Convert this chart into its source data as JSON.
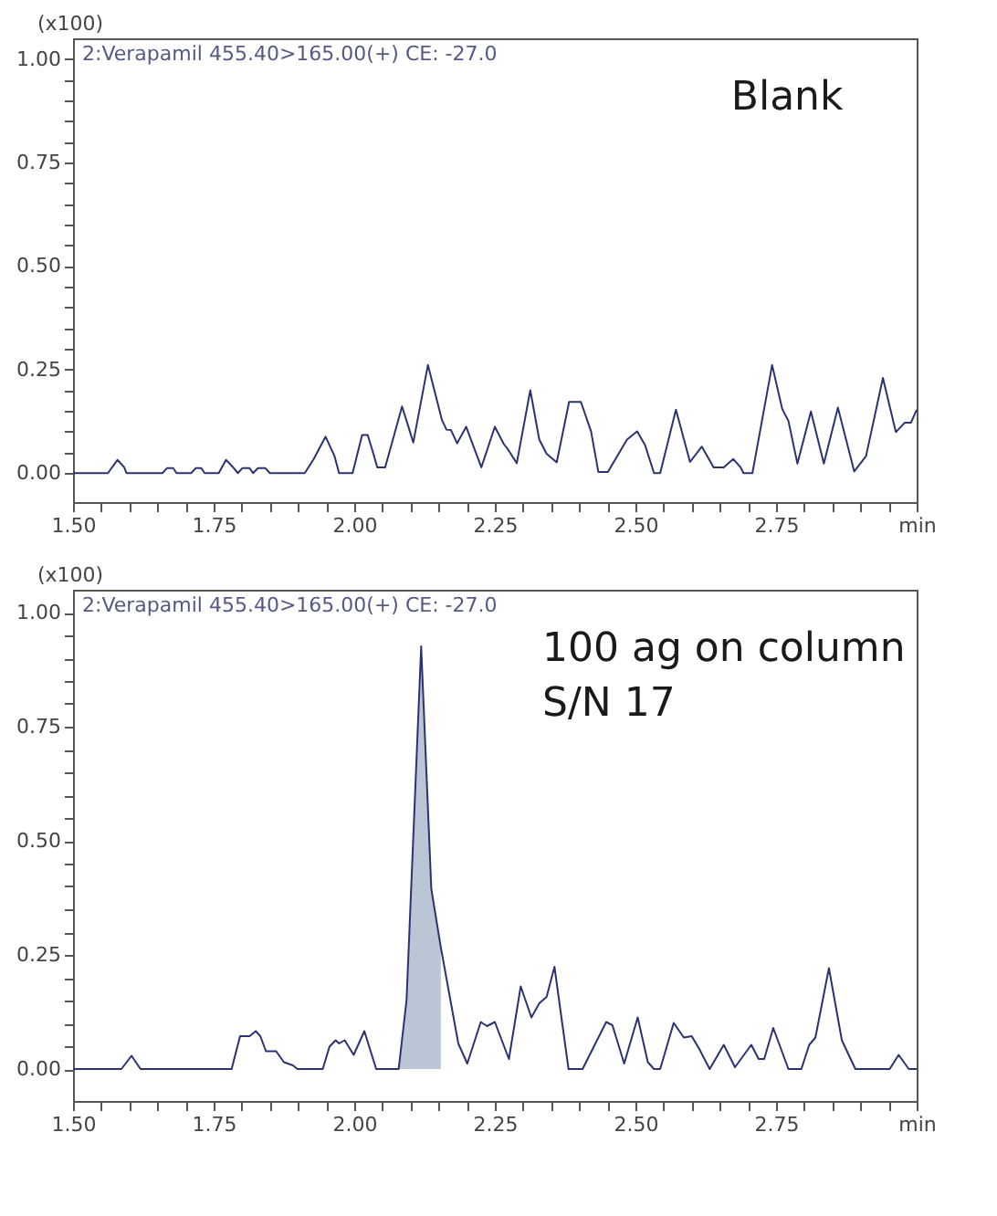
{
  "chart_data": [
    {
      "type": "line",
      "ylabel": "(x100)",
      "annotations": [
        "2:Verapamil 455.40>165.00(+) CE: -27.0",
        "Blank"
      ],
      "grid": false,
      "marker": "none",
      "line_style": "solid",
      "xlim": [
        1.5,
        3.0
      ],
      "ylim": [
        -0.07,
        1.05
      ],
      "xticks": [
        {
          "value": 1.5,
          "label": "1.50"
        },
        {
          "value": 1.55,
          "label": null
        },
        {
          "value": 1.6,
          "label": null
        },
        {
          "value": 1.65,
          "label": null
        },
        {
          "value": 1.7,
          "label": null
        },
        {
          "value": 1.75,
          "label": "1.75"
        },
        {
          "value": 1.8,
          "label": null
        },
        {
          "value": 1.85,
          "label": null
        },
        {
          "value": 1.9,
          "label": null
        },
        {
          "value": 1.95,
          "label": null
        },
        {
          "value": 2.0,
          "label": "2.00"
        },
        {
          "value": 2.05,
          "label": null
        },
        {
          "value": 2.1,
          "label": null
        },
        {
          "value": 2.15,
          "label": null
        },
        {
          "value": 2.2,
          "label": null
        },
        {
          "value": 2.25,
          "label": "2.25"
        },
        {
          "value": 2.3,
          "label": null
        },
        {
          "value": 2.35,
          "label": null
        },
        {
          "value": 2.4,
          "label": null
        },
        {
          "value": 2.45,
          "label": null
        },
        {
          "value": 2.5,
          "label": "2.50"
        },
        {
          "value": 2.55,
          "label": null
        },
        {
          "value": 2.6,
          "label": null
        },
        {
          "value": 2.65,
          "label": null
        },
        {
          "value": 2.7,
          "label": null
        },
        {
          "value": 2.75,
          "label": "2.75"
        },
        {
          "value": 2.8,
          "label": null
        },
        {
          "value": 2.85,
          "label": null
        },
        {
          "value": 2.9,
          "label": null
        },
        {
          "value": 2.95,
          "label": null
        },
        {
          "value": 3.0,
          "label": "min"
        }
      ],
      "yticks": [
        {
          "value": 0,
          "label": "0.00"
        },
        {
          "value": 0.05,
          "label": null
        },
        {
          "value": 0.1,
          "label": null
        },
        {
          "value": 0.15,
          "label": null
        },
        {
          "value": 0.2,
          "label": null
        },
        {
          "value": 0.25,
          "label": "0.25"
        },
        {
          "value": 0.3,
          "label": null
        },
        {
          "value": 0.35,
          "label": null
        },
        {
          "value": 0.4,
          "label": null
        },
        {
          "value": 0.45,
          "label": null
        },
        {
          "value": 0.5,
          "label": "0.50"
        },
        {
          "value": 0.55,
          "label": null
        },
        {
          "value": 0.6,
          "label": null
        },
        {
          "value": 0.65,
          "label": null
        },
        {
          "value": 0.7,
          "label": null
        },
        {
          "value": 0.75,
          "label": "0.75"
        },
        {
          "value": 0.8,
          "label": null
        },
        {
          "value": 0.85,
          "label": null
        },
        {
          "value": 0.9,
          "label": null
        },
        {
          "value": 0.95,
          "label": null
        },
        {
          "value": 1.0,
          "label": "1.00"
        }
      ],
      "series": [
        {
          "type": "line",
          "color": "#2b3470",
          "x": [
            1.5,
            1.562,
            1.579,
            1.591,
            1.595,
            1.659,
            1.667,
            1.678,
            1.684,
            1.71,
            1.718,
            1.728,
            1.734,
            1.759,
            1.772,
            1.784,
            1.793,
            1.801,
            1.814,
            1.82,
            1.829,
            1.842,
            1.85,
            1.912,
            1.928,
            1.949,
            1.965,
            1.973,
            1.997,
            2.014,
            2.024,
            2.034,
            2.041,
            2.055,
            2.085,
            2.094,
            2.105,
            2.131,
            2.156,
            2.164,
            2.172,
            2.183,
            2.199,
            2.21,
            2.226,
            2.25,
            2.266,
            2.273,
            2.289,
            2.313,
            2.329,
            2.342,
            2.36,
            2.382,
            2.403,
            2.421,
            2.434,
            2.451,
            2.485,
            2.503,
            2.517,
            2.533,
            2.544,
            2.572,
            2.597,
            2.618,
            2.639,
            2.657,
            2.674,
            2.687,
            2.692,
            2.708,
            2.743,
            2.761,
            2.772,
            2.788,
            2.812,
            2.835,
            2.86,
            2.889,
            2.91,
            2.94,
            2.963,
            2.979,
            2.99,
            3.0
          ],
          "values": [
            0,
            0,
            0.032,
            0.014,
            0,
            0,
            0.012,
            0.012,
            0,
            0,
            0.012,
            0.012,
            0,
            0,
            0.032,
            0.015,
            0,
            0.012,
            0.012,
            0,
            0.012,
            0.012,
            0,
            0,
            0.034,
            0.088,
            0.041,
            0,
            0,
            0.092,
            0.092,
            0.047,
            0.014,
            0.014,
            0.161,
            0.122,
            0.074,
            0.261,
            0.128,
            0.105,
            0.104,
            0.072,
            0.112,
            0.072,
            0.014,
            0.112,
            0.07,
            0.058,
            0.024,
            0.2,
            0.081,
            0.047,
            0.026,
            0.172,
            0.172,
            0.101,
            0.003,
            0.003,
            0.081,
            0.101,
            0.068,
            0,
            0,
            0.153,
            0.027,
            0.064,
            0.014,
            0.014,
            0.034,
            0.014,
            0,
            0,
            0.261,
            0.155,
            0.126,
            0.023,
            0.149,
            0.023,
            0.158,
            0.004,
            0.041,
            0.23,
            0.099,
            0.122,
            0.122,
            0.153
          ]
        }
      ]
    },
    {
      "type": "line",
      "ylabel": "(x100)",
      "annotations": [
        "2:Verapamil 455.40>165.00(+) CE: -27.0",
        "100 ag on column",
        "S/N 17"
      ],
      "grid": false,
      "marker": "none",
      "line_style": "solid",
      "xlim": [
        1.5,
        3.0
      ],
      "ylim": [
        -0.07,
        1.05
      ],
      "xticks": [
        {
          "value": 1.5,
          "label": "1.50"
        },
        {
          "value": 1.55,
          "label": null
        },
        {
          "value": 1.6,
          "label": null
        },
        {
          "value": 1.65,
          "label": null
        },
        {
          "value": 1.7,
          "label": null
        },
        {
          "value": 1.75,
          "label": "1.75"
        },
        {
          "value": 1.8,
          "label": null
        },
        {
          "value": 1.85,
          "label": null
        },
        {
          "value": 1.9,
          "label": null
        },
        {
          "value": 1.95,
          "label": null
        },
        {
          "value": 2.0,
          "label": "2.00"
        },
        {
          "value": 2.05,
          "label": null
        },
        {
          "value": 2.1,
          "label": null
        },
        {
          "value": 2.15,
          "label": null
        },
        {
          "value": 2.2,
          "label": null
        },
        {
          "value": 2.25,
          "label": "2.25"
        },
        {
          "value": 2.3,
          "label": null
        },
        {
          "value": 2.35,
          "label": null
        },
        {
          "value": 2.4,
          "label": null
        },
        {
          "value": 2.45,
          "label": null
        },
        {
          "value": 2.5,
          "label": "2.50"
        },
        {
          "value": 2.55,
          "label": null
        },
        {
          "value": 2.6,
          "label": null
        },
        {
          "value": 2.65,
          "label": null
        },
        {
          "value": 2.7,
          "label": null
        },
        {
          "value": 2.75,
          "label": "2.75"
        },
        {
          "value": 2.8,
          "label": null
        },
        {
          "value": 2.85,
          "label": null
        },
        {
          "value": 2.9,
          "label": null
        },
        {
          "value": 2.95,
          "label": null
        },
        {
          "value": 3.0,
          "label": "min"
        }
      ],
      "yticks": [
        {
          "value": 0,
          "label": "0.00"
        },
        {
          "value": 0.05,
          "label": null
        },
        {
          "value": 0.1,
          "label": null
        },
        {
          "value": 0.15,
          "label": null
        },
        {
          "value": 0.2,
          "label": null
        },
        {
          "value": 0.25,
          "label": "0.25"
        },
        {
          "value": 0.3,
          "label": null
        },
        {
          "value": 0.35,
          "label": null
        },
        {
          "value": 0.4,
          "label": null
        },
        {
          "value": 0.45,
          "label": null
        },
        {
          "value": 0.5,
          "label": "0.50"
        },
        {
          "value": 0.55,
          "label": null
        },
        {
          "value": 0.6,
          "label": null
        },
        {
          "value": 0.65,
          "label": null
        },
        {
          "value": 0.7,
          "label": null
        },
        {
          "value": 0.75,
          "label": "0.75"
        },
        {
          "value": 0.8,
          "label": null
        },
        {
          "value": 0.85,
          "label": null
        },
        {
          "value": 0.9,
          "label": null
        },
        {
          "value": 0.95,
          "label": null
        },
        {
          "value": 1.0,
          "label": "1.00"
        }
      ],
      "series": [
        {
          "type": "area",
          "color": "#b3bfd2",
          "x": [
            2.079,
            2.093,
            2.119,
            2.137,
            2.154
          ],
          "values": [
            0.015,
            0.151,
            0.926,
            0.395,
            0.266
          ]
        },
        {
          "type": "line",
          "color": "#2b3470",
          "x": [
            1.5,
            1.586,
            1.604,
            1.62,
            1.782,
            1.797,
            1.814,
            1.825,
            1.833,
            1.843,
            1.861,
            1.875,
            1.891,
            1.899,
            1.944,
            1.956,
            1.967,
            1.973,
            1.983,
            1.999,
            2.018,
            2.039,
            2.079,
            2.093,
            2.119,
            2.137,
            2.154,
            2.167,
            2.185,
            2.201,
            2.225,
            2.236,
            2.25,
            2.275,
            2.296,
            2.315,
            2.329,
            2.342,
            2.356,
            2.381,
            2.406,
            2.448,
            2.459,
            2.48,
            2.504,
            2.522,
            2.533,
            2.544,
            2.568,
            2.586,
            2.6,
            2.613,
            2.632,
            2.657,
            2.677,
            2.706,
            2.719,
            2.729,
            2.745,
            2.772,
            2.795,
            2.809,
            2.82,
            2.844,
            2.867,
            2.891,
            2.952,
            2.968,
            2.986,
            3.0
          ],
          "values": [
            0,
            0,
            0.029,
            0,
            0,
            0.072,
            0.072,
            0.083,
            0.072,
            0.039,
            0.039,
            0.015,
            0.008,
            0,
            0,
            0.049,
            0.063,
            0.056,
            0.063,
            0.031,
            0.083,
            0,
            0,
            0.151,
            0.926,
            0.395,
            0.266,
            0.178,
            0.056,
            0.012,
            0.103,
            0.094,
            0.103,
            0.022,
            0.181,
            0.113,
            0.144,
            0.158,
            0.224,
            0,
            0,
            0.103,
            0.096,
            0.012,
            0.113,
            0.015,
            0,
            0,
            0.101,
            0.069,
            0.072,
            0.045,
            0,
            0.053,
            0.004,
            0.053,
            0.022,
            0.022,
            0.09,
            0,
            0,
            0.053,
            0.069,
            0.221,
            0.063,
            0,
            0,
            0.031,
            0,
            0
          ]
        }
      ]
    }
  ]
}
